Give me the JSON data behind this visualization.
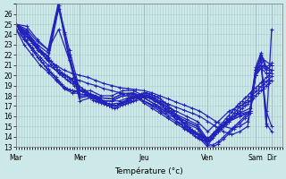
{
  "background_color": "#cce8e8",
  "plot_bg_color": "#cce8e8",
  "line_color": "#2222bb",
  "marker": "+",
  "marker_size": 3,
  "line_width": 0.9,
  "xlabel": "Température (°c)",
  "ylim": [
    13,
    27
  ],
  "yticks": [
    13,
    14,
    15,
    16,
    17,
    18,
    19,
    20,
    21,
    22,
    23,
    24,
    25,
    26
  ],
  "xtick_labels": [
    "Mar",
    "Mer",
    "Jeu",
    "Ven",
    "Sam",
    "Dir"
  ],
  "xtick_positions": [
    0,
    24,
    48,
    72,
    90,
    96
  ],
  "xlim": [
    0,
    100
  ],
  "grid_color": "#aacccc",
  "series": [
    {
      "x": [
        0,
        1,
        2,
        3,
        4,
        5,
        6,
        7,
        8,
        9,
        10,
        11,
        12,
        13,
        14,
        15,
        16,
        17,
        18,
        19,
        20,
        21,
        22,
        23,
        24,
        25,
        26,
        27,
        28,
        29,
        30,
        31,
        32,
        33,
        34,
        35,
        36,
        37,
        38,
        39,
        40,
        41,
        42,
        43,
        44,
        45,
        46,
        47,
        48,
        49,
        50,
        51,
        52,
        53,
        54,
        55,
        56,
        57,
        58,
        59,
        60,
        61,
        62,
        63,
        64,
        65,
        66,
        67,
        68,
        69,
        70,
        71,
        72,
        73,
        74,
        75,
        76,
        77,
        78,
        79,
        80,
        81,
        82,
        83,
        84,
        85,
        86,
        87,
        88,
        89,
        90,
        91,
        92,
        93,
        94,
        95,
        96
      ],
      "y": [
        25,
        24.8,
        24.5,
        24.2,
        24.0,
        23.7,
        23.4,
        23.1,
        22.8,
        22.5,
        22.2,
        22.0,
        21.7,
        21.4,
        21.1,
        20.8,
        20.5,
        20.3,
        20.1,
        19.9,
        19.7,
        19.5,
        19.3,
        19.1,
        18.9,
        18.7,
        18.5,
        18.3,
        18.1,
        17.9,
        17.7,
        17.6,
        17.5,
        17.4,
        17.3,
        17.2,
        17.1,
        17.0,
        17.1,
        17.2,
        17.3,
        17.4,
        17.5,
        17.6,
        17.7,
        17.8,
        17.9,
        18.0,
        18.1,
        18.1,
        18.0,
        17.9,
        17.8,
        17.6,
        17.4,
        17.2,
        17.0,
        16.8,
        16.5,
        16.3,
        16.0,
        15.8,
        15.5,
        15.3,
        15.1,
        14.9,
        14.7,
        14.5,
        14.3,
        14.2,
        14.1,
        14.0,
        13.9,
        14.0,
        14.2,
        14.4,
        14.6,
        14.8,
        15.0,
        15.2,
        15.5,
        15.8,
        16.0,
        16.3,
        16.5,
        16.8,
        17.0,
        17.2,
        17.5,
        17.7,
        18.0,
        18.3,
        18.5,
        18.7,
        19.0,
        19.2,
        19.5
      ]
    },
    {
      "x": [
        0,
        1,
        2,
        3,
        4,
        5,
        6,
        7,
        8,
        9,
        10,
        11,
        12,
        13,
        14,
        15,
        16,
        17,
        18,
        19,
        20,
        21,
        22,
        23,
        24,
        25,
        26,
        27,
        28,
        29,
        30,
        31,
        32,
        33,
        34,
        35,
        36,
        37,
        38,
        39,
        40,
        41,
        42,
        43,
        44,
        45,
        46,
        47,
        48,
        49,
        50,
        51,
        52,
        53,
        54,
        55,
        56,
        57,
        58,
        59,
        60,
        61,
        62,
        63,
        64,
        65,
        66,
        67,
        68,
        69,
        70,
        71,
        72,
        73,
        74,
        75,
        76,
        77,
        78,
        79,
        80,
        81,
        82,
        83,
        84,
        85,
        86,
        87,
        88,
        89,
        90,
        91,
        92,
        93,
        94,
        95,
        96
      ],
      "y": [
        25,
        24.7,
        24.4,
        24.1,
        23.8,
        23.5,
        23.2,
        22.9,
        22.6,
        22.3,
        22.0,
        21.7,
        21.4,
        21.1,
        20.8,
        20.5,
        20.2,
        20.0,
        19.8,
        19.6,
        19.4,
        19.2,
        19.0,
        18.8,
        18.6,
        18.4,
        18.2,
        18.0,
        17.8,
        17.6,
        17.5,
        17.4,
        17.3,
        17.2,
        17.1,
        17.0,
        16.9,
        16.8,
        16.9,
        17.0,
        17.1,
        17.2,
        17.3,
        17.4,
        17.5,
        17.6,
        17.7,
        17.8,
        17.9,
        17.9,
        17.8,
        17.7,
        17.6,
        17.4,
        17.2,
        17.0,
        16.8,
        16.5,
        16.3,
        16.0,
        15.7,
        15.4,
        15.2,
        14.9,
        14.7,
        14.5,
        14.3,
        14.1,
        13.9,
        13.8,
        13.7,
        13.6,
        13.5,
        13.7,
        13.9,
        14.2,
        14.5,
        14.8,
        15.1,
        15.4,
        15.7,
        16.0,
        16.3,
        16.6,
        16.9,
        17.1,
        17.4,
        17.6,
        17.9,
        18.1,
        18.4,
        18.6,
        18.9,
        19.1,
        19.4,
        19.6,
        19.9
      ]
    },
    {
      "x": [
        0,
        1,
        2,
        3,
        4,
        5,
        6,
        7,
        8,
        9,
        10,
        11,
        12,
        13,
        14,
        15,
        16,
        17,
        18,
        19,
        20,
        21,
        22,
        23,
        24,
        25,
        26,
        27,
        28,
        29,
        30,
        31,
        32,
        33,
        34,
        35,
        36,
        37,
        38,
        39,
        40,
        41,
        42,
        43,
        44,
        45,
        46,
        47,
        48,
        49,
        50,
        51,
        52,
        53,
        54,
        55,
        56,
        57,
        58,
        59,
        60,
        61,
        62,
        63,
        64,
        65,
        66,
        67,
        68,
        69,
        70,
        71,
        72,
        73,
        74,
        75,
        76,
        77,
        78,
        79,
        80,
        81,
        82,
        83,
        84,
        85,
        86,
        87,
        88,
        89,
        90,
        91,
        92,
        93,
        94,
        95,
        96
      ],
      "y": [
        25,
        24.6,
        24.2,
        23.8,
        23.4,
        23.0,
        22.6,
        22.2,
        21.8,
        21.5,
        21.2,
        20.9,
        20.6,
        20.3,
        20.0,
        19.7,
        19.4,
        19.1,
        18.9,
        18.7,
        18.6,
        18.5,
        18.4,
        18.4,
        18.5,
        18.5,
        18.4,
        18.3,
        18.2,
        18.0,
        17.9,
        17.7,
        17.5,
        17.3,
        17.1,
        17.0,
        17.0,
        17.0,
        17.1,
        17.2,
        17.4,
        17.5,
        17.7,
        17.8,
        17.9,
        18.0,
        18.1,
        18.2,
        18.3,
        18.3,
        18.2,
        18.1,
        18.0,
        17.9,
        17.7,
        17.5,
        17.3,
        17.1,
        16.8,
        16.5,
        16.2,
        15.9,
        15.6,
        15.3,
        15.0,
        14.8,
        14.6,
        14.4,
        14.2,
        14.1,
        14.0,
        13.9,
        13.8,
        14.0,
        14.3,
        14.6,
        14.9,
        15.2,
        15.5,
        15.8,
        16.1,
        16.4,
        16.7,
        17.0,
        17.3,
        17.5,
        17.8,
        18.0,
        18.3,
        18.5,
        18.8,
        19.0,
        19.3,
        19.5,
        19.8,
        20.0,
        20.5
      ]
    },
    {
      "x": [
        0,
        3,
        6,
        9,
        12,
        15,
        18,
        21,
        24,
        27,
        30,
        33,
        36,
        39,
        42,
        45,
        48,
        51,
        54,
        57,
        60,
        63,
        66,
        69,
        72,
        74,
        76,
        78,
        80,
        82,
        84,
        86,
        88,
        90,
        92,
        94,
        96
      ],
      "y": [
        25,
        23.5,
        22.5,
        21.5,
        20.5,
        19.8,
        18.8,
        18.5,
        18.5,
        18.2,
        18.0,
        17.5,
        17.5,
        17.5,
        17.8,
        18.0,
        17.5,
        17.0,
        16.5,
        16.0,
        15.5,
        15.0,
        14.5,
        14.0,
        13.2,
        13.2,
        13.5,
        14.0,
        14.5,
        15.0,
        15.5,
        16.0,
        16.5,
        20.5,
        21.0,
        20.5,
        20.5
      ]
    },
    {
      "x": [
        0,
        3,
        6,
        9,
        12,
        15,
        18,
        21,
        24,
        27,
        30,
        33,
        36,
        39,
        42,
        45,
        48,
        51,
        54,
        57,
        60,
        63,
        66,
        69,
        72,
        74,
        76,
        78,
        80,
        82,
        84,
        86,
        88,
        90,
        92,
        94,
        96
      ],
      "y": [
        24.5,
        23.0,
        22.0,
        21.0,
        20.3,
        19.5,
        18.7,
        18.3,
        18.2,
        18.0,
        17.8,
        17.3,
        17.2,
        17.3,
        17.6,
        17.9,
        17.3,
        16.8,
        16.3,
        15.8,
        15.3,
        14.8,
        14.3,
        13.8,
        13.0,
        13.0,
        13.3,
        13.8,
        14.3,
        14.8,
        15.3,
        15.8,
        16.3,
        20.0,
        20.7,
        20.2,
        20.2
      ]
    },
    {
      "x": [
        0,
        3,
        6,
        9,
        12,
        15,
        18,
        21,
        24,
        27,
        30,
        33,
        36,
        39,
        42,
        45,
        48,
        51,
        54,
        57,
        60,
        63,
        66,
        69,
        72,
        75,
        78,
        81,
        84,
        87,
        90,
        93,
        96
      ],
      "y": [
        25,
        24.0,
        23.2,
        22.3,
        21.5,
        21.0,
        20.5,
        20.2,
        20.0,
        19.8,
        19.5,
        19.2,
        19.0,
        18.8,
        18.7,
        18.6,
        18.5,
        18.3,
        18.0,
        17.7,
        17.4,
        17.1,
        16.8,
        16.5,
        16.0,
        15.5,
        15.0,
        14.8,
        15.0,
        15.5,
        20.0,
        21.0,
        20.5
      ]
    },
    {
      "x": [
        0,
        3,
        6,
        9,
        12,
        15,
        18,
        21,
        24,
        27,
        30,
        33,
        36,
        39,
        42,
        45,
        48,
        51,
        54,
        57,
        60,
        63,
        66,
        69,
        72,
        75,
        78,
        81,
        84,
        87,
        90,
        93,
        96
      ],
      "y": [
        24.5,
        23.5,
        22.7,
        21.8,
        21.0,
        20.5,
        20.0,
        19.7,
        19.5,
        19.2,
        19.0,
        18.7,
        18.5,
        18.3,
        18.2,
        18.1,
        18.0,
        17.8,
        17.5,
        17.2,
        16.9,
        16.6,
        16.3,
        16.0,
        15.5,
        15.0,
        14.5,
        14.2,
        14.5,
        15.0,
        20.0,
        21.5,
        21.0
      ]
    },
    {
      "x": [
        0,
        4,
        8,
        12,
        16,
        20,
        24,
        28,
        32,
        36,
        40,
        44,
        48,
        52,
        56,
        60,
        64,
        68,
        72,
        76,
        80,
        84,
        88,
        90,
        92,
        94,
        96
      ],
      "y": [
        25,
        24.0,
        22.5,
        21.5,
        26.5,
        22.0,
        18.0,
        18.0,
        17.5,
        17.5,
        18.0,
        18.0,
        17.5,
        17.0,
        16.5,
        16.0,
        15.5,
        15.0,
        13.5,
        14.5,
        15.5,
        16.0,
        16.5,
        20.0,
        21.5,
        15.0,
        24.5
      ]
    },
    {
      "x": [
        0,
        4,
        8,
        12,
        16,
        20,
        24,
        28,
        32,
        36,
        40,
        44,
        48,
        52,
        56,
        60,
        64,
        68,
        72,
        76,
        80,
        84,
        88,
        90,
        92,
        94,
        96
      ],
      "y": [
        25,
        24.2,
        22.8,
        21.8,
        26.8,
        22.5,
        18.5,
        18.2,
        17.8,
        17.7,
        18.2,
        18.3,
        17.8,
        17.2,
        16.7,
        16.2,
        15.7,
        15.2,
        13.7,
        14.8,
        15.8,
        16.3,
        16.8,
        20.3,
        21.8,
        15.3,
        14.5
      ]
    },
    {
      "x": [
        0,
        4,
        8,
        12,
        16,
        18,
        20,
        22,
        24,
        28,
        32,
        36,
        40,
        44,
        48,
        52,
        56,
        60,
        64,
        68,
        72,
        76,
        80,
        84,
        88,
        90,
        92,
        94,
        96
      ],
      "y": [
        25,
        24.3,
        23.0,
        22.2,
        27.0,
        24.0,
        21.5,
        19.5,
        17.5,
        17.8,
        17.5,
        17.5,
        18.0,
        18.0,
        17.5,
        17.0,
        16.3,
        15.8,
        15.3,
        14.8,
        13.2,
        14.5,
        15.5,
        16.0,
        16.3,
        20.5,
        22.0,
        20.5,
        21.0
      ]
    },
    {
      "x": [
        0,
        4,
        8,
        12,
        16,
        18,
        20,
        22,
        24,
        28,
        32,
        36,
        40,
        44,
        48,
        52,
        56,
        60,
        64,
        68,
        72,
        76,
        80,
        84,
        88,
        90,
        92,
        94,
        96
      ],
      "y": [
        25,
        24.5,
        23.3,
        22.5,
        27.2,
        24.2,
        21.8,
        19.8,
        17.8,
        18.0,
        17.8,
        17.7,
        18.2,
        18.2,
        17.8,
        17.2,
        16.5,
        16.0,
        15.5,
        15.0,
        13.4,
        14.7,
        15.7,
        16.2,
        16.5,
        20.8,
        22.2,
        20.8,
        21.2
      ]
    },
    {
      "x": [
        0,
        4,
        8,
        12,
        16,
        20,
        24,
        28,
        32,
        36,
        40,
        44,
        48,
        52,
        56,
        60,
        64,
        68,
        72,
        76,
        80,
        84,
        88,
        90,
        92,
        94,
        96
      ],
      "y": [
        25,
        24.8,
        23.5,
        22.5,
        24.5,
        21.5,
        18.5,
        18.5,
        18.0,
        18.0,
        18.5,
        18.5,
        18.0,
        17.5,
        17.0,
        16.5,
        16.0,
        15.5,
        14.5,
        15.5,
        16.5,
        17.0,
        17.5,
        20.5,
        21.0,
        16.5,
        15.0
      ]
    }
  ]
}
